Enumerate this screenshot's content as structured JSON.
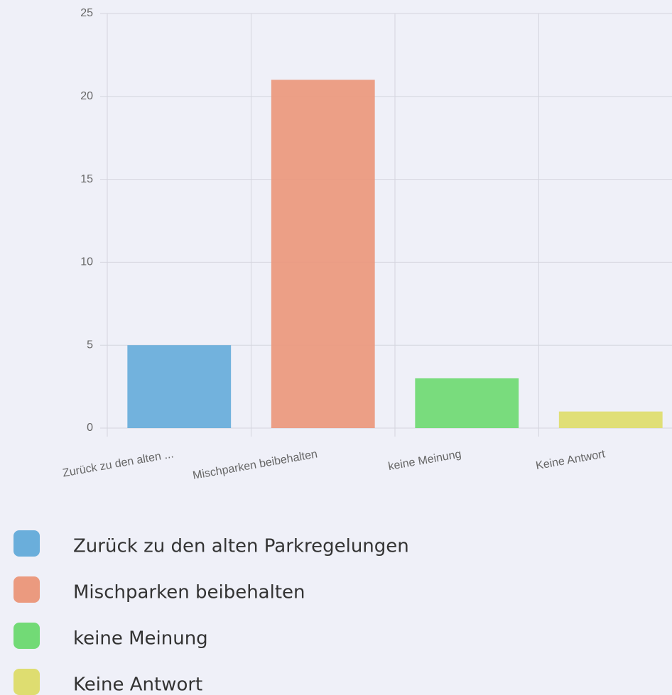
{
  "chart_data": {
    "type": "bar",
    "categories": [
      "Zurück zu den alten ...",
      "Mischparken beibehalten",
      "keine Meinung",
      "Keine Antwort"
    ],
    "values": [
      5,
      21,
      3,
      1
    ],
    "colors": [
      "#6aaedb",
      "#eb9a7f",
      "#72da76",
      "#dedd70"
    ],
    "legend": [
      "Zurück zu den alten Parkregelungen",
      "Mischparken beibehalten",
      "keine Meinung",
      "Keine Antwort"
    ],
    "ylim": [
      0,
      25
    ],
    "yticks": [
      0,
      5,
      10,
      15,
      20,
      25
    ],
    "grid": true
  }
}
